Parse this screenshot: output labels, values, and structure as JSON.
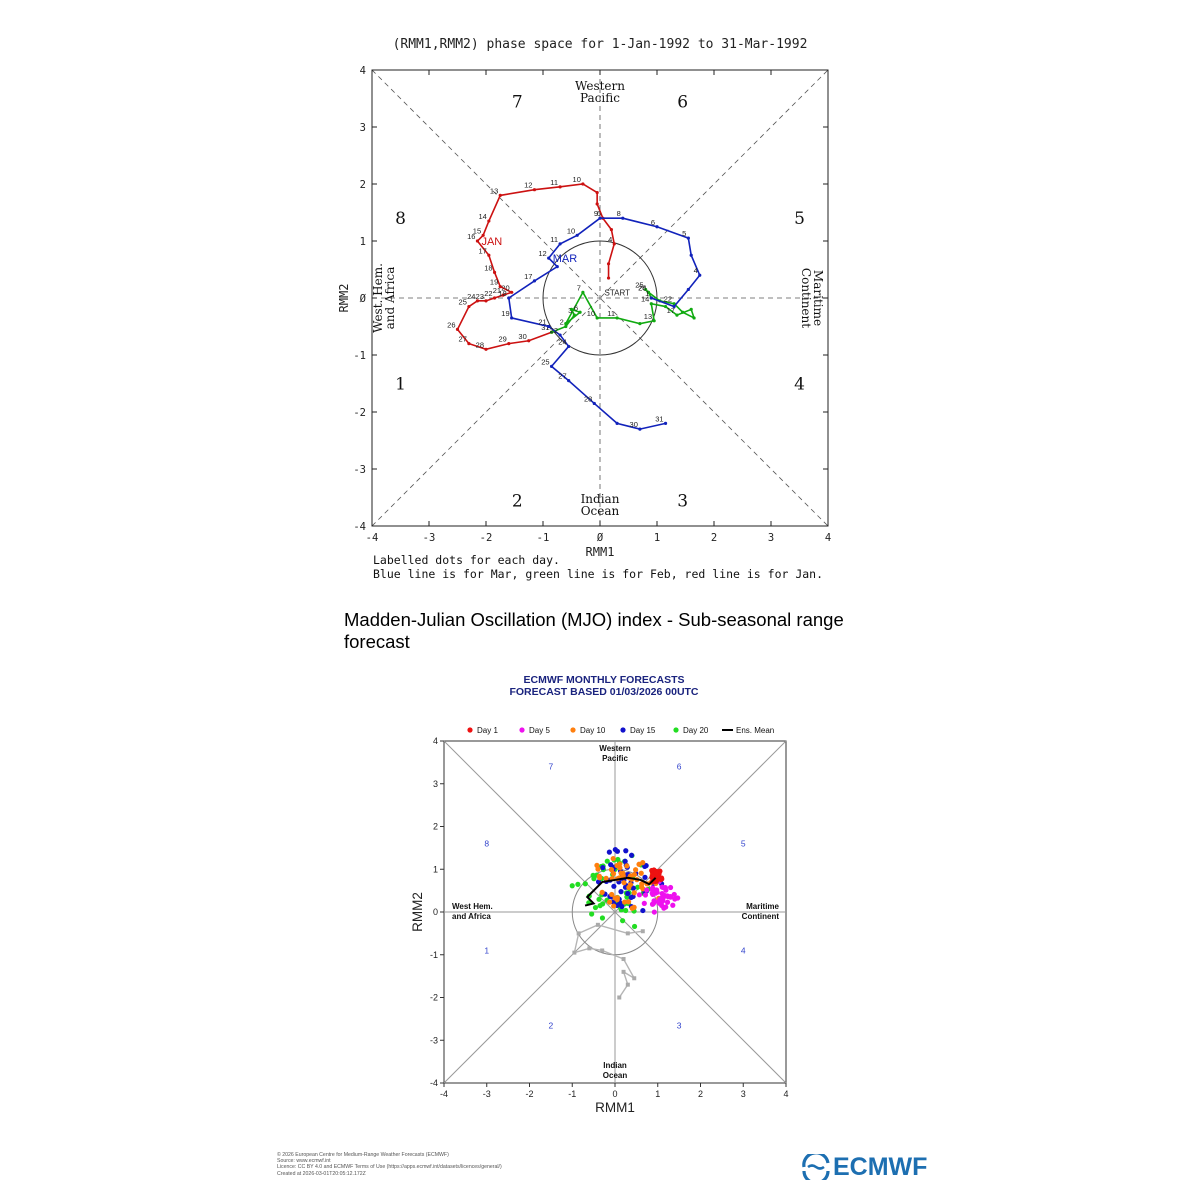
{
  "page": {
    "heading": "Madden-Julian Oscillation (MJO) index - Sub-seasonal range forecast",
    "credits": [
      "© 2026 European Centre for Medium-Range Weather Forecasts (ECMWF)",
      "Source: www.ecmwf.int",
      "Licence: CC BY 4.0 and ECMWF Terms of Use (https://apps.ecmwf.int/datasets/licences/general/)",
      "Created at 2026-03-01T20:05:12.172Z"
    ],
    "logo_text": "ECMWF",
    "logo_icon": "ecmwf-wave-logo"
  },
  "chart_data": [
    {
      "type": "scatter",
      "title": "(RMM1,RMM2) phase space for  1-Jan-1992 to 31-Mar-1992",
      "xlabel": "RMM1",
      "ylabel": "RMM2",
      "xlim": [
        -4,
        4
      ],
      "ylim": [
        -4,
        4
      ],
      "xticks": [
        "-4",
        "-3",
        "-2",
        "-1",
        "0",
        "1",
        "2",
        "3",
        "4"
      ],
      "yticks": [
        "4",
        "3",
        "2",
        "1",
        "0",
        "-1",
        "-2",
        "-3",
        "-4"
      ],
      "phase_numbers": [
        {
          "label": "7",
          "x": -1.45,
          "y": 3.45
        },
        {
          "label": "6",
          "x": 1.45,
          "y": 3.45
        },
        {
          "label": "8",
          "x": -3.5,
          "y": 1.4
        },
        {
          "label": "5",
          "x": 3.5,
          "y": 1.4
        },
        {
          "label": "1",
          "x": -3.5,
          "y": -1.5
        },
        {
          "label": "4",
          "x": 3.5,
          "y": -1.5
        },
        {
          "label": "2",
          "x": -1.45,
          "y": -3.55
        },
        {
          "label": "3",
          "x": 1.45,
          "y": -3.55
        }
      ],
      "regions": [
        {
          "label": "Western\nPacific",
          "position": "top"
        },
        {
          "label": "Indian\nOcean",
          "position": "bottom"
        },
        {
          "label": "West. Hem.\nand Africa",
          "position": "left"
        },
        {
          "label": "Maritime\nContinent",
          "position": "right"
        }
      ],
      "start_label": "START",
      "notes": [
        "Labelled dots for each day.",
        "Blue line is for Mar, green line is for Feb, red line is for Jan."
      ],
      "series": [
        {
          "name": "Jan",
          "color": "#cc1111",
          "month_label": "JAN",
          "points": [
            {
              "x": 0.15,
              "y": 0.35,
              "day": ""
            },
            {
              "x": 0.15,
              "y": 0.6,
              "day": ""
            },
            {
              "x": 0.25,
              "y": 0.95,
              "day": "4"
            },
            {
              "x": 0.2,
              "y": 1.2,
              "day": ""
            },
            {
              "x": 0.05,
              "y": 1.4,
              "day": "6"
            },
            {
              "x": -0.05,
              "y": 1.65,
              "day": ""
            },
            {
              "x": -0.05,
              "y": 1.85,
              "day": ""
            },
            {
              "x": -0.3,
              "y": 2.0,
              "day": "10"
            },
            {
              "x": -0.7,
              "y": 1.95,
              "day": "11"
            },
            {
              "x": -1.15,
              "y": 1.9,
              "day": "12"
            },
            {
              "x": -1.75,
              "y": 1.8,
              "day": "13"
            },
            {
              "x": -1.95,
              "y": 1.35,
              "day": "14"
            },
            {
              "x": -2.05,
              "y": 1.1,
              "day": "15"
            },
            {
              "x": -2.15,
              "y": 1.0,
              "day": "16"
            },
            {
              "x": -1.95,
              "y": 0.75,
              "day": "17"
            },
            {
              "x": -1.85,
              "y": 0.45,
              "day": "18"
            },
            {
              "x": -1.75,
              "y": 0.2,
              "day": "19"
            },
            {
              "x": -1.55,
              "y": 0.1,
              "day": "20"
            },
            {
              "x": -1.7,
              "y": 0.05,
              "day": "21"
            },
            {
              "x": -1.85,
              "y": 0.0,
              "day": "22"
            },
            {
              "x": -2.0,
              "y": -0.05,
              "day": "23"
            },
            {
              "x": -2.15,
              "y": -0.05,
              "day": "24"
            },
            {
              "x": -2.3,
              "y": -0.15,
              "day": "25"
            },
            {
              "x": -2.5,
              "y": -0.55,
              "day": "26"
            },
            {
              "x": -2.3,
              "y": -0.8,
              "day": "27"
            },
            {
              "x": -2.0,
              "y": -0.9,
              "day": "28"
            },
            {
              "x": -1.6,
              "y": -0.8,
              "day": "29"
            },
            {
              "x": -1.25,
              "y": -0.75,
              "day": "30"
            },
            {
              "x": -0.85,
              "y": -0.6,
              "day": "31"
            }
          ]
        },
        {
          "name": "Feb",
          "color": "#11aa11",
          "month_label": "FEB",
          "points": [
            {
              "x": -0.85,
              "y": -0.6,
              "day": "1"
            },
            {
              "x": -0.6,
              "y": -0.5,
              "day": "2"
            },
            {
              "x": -0.45,
              "y": -0.3,
              "day": "3"
            },
            {
              "x": -0.5,
              "y": -0.2,
              "day": ""
            },
            {
              "x": -0.35,
              "y": -0.25,
              "day": "6"
            },
            {
              "x": -0.6,
              "y": -0.45,
              "day": ""
            },
            {
              "x": -0.3,
              "y": 0.1,
              "day": "7"
            },
            {
              "x": -0.05,
              "y": -0.35,
              "day": "10"
            },
            {
              "x": 0.3,
              "y": -0.35,
              "day": "11"
            },
            {
              "x": 0.7,
              "y": -0.45,
              "day": ""
            },
            {
              "x": 0.95,
              "y": -0.4,
              "day": "13"
            },
            {
              "x": 0.9,
              "y": -0.1,
              "day": "14"
            },
            {
              "x": 1.15,
              "y": -0.15,
              "day": ""
            },
            {
              "x": 1.35,
              "y": -0.3,
              "day": "17"
            },
            {
              "x": 1.6,
              "y": -0.2,
              "day": ""
            },
            {
              "x": 1.65,
              "y": -0.35,
              "day": ""
            },
            {
              "x": 1.45,
              "y": -0.25,
              "day": ""
            },
            {
              "x": 1.3,
              "y": -0.1,
              "day": "22"
            },
            {
              "x": 1.05,
              "y": -0.05,
              "day": ""
            },
            {
              "x": 0.85,
              "y": 0.1,
              "day": "24"
            },
            {
              "x": 0.8,
              "y": 0.15,
              "day": "25"
            },
            {
              "x": 0.85,
              "y": 0.1,
              "day": "26"
            },
            {
              "x": 0.9,
              "y": 0.0,
              "day": ""
            }
          ]
        },
        {
          "name": "Mar",
          "color": "#1122bb",
          "month_label": "MAR",
          "points": [
            {
              "x": 0.9,
              "y": 0.0,
              "day": "1"
            },
            {
              "x": 1.3,
              "y": -0.15,
              "day": ""
            },
            {
              "x": 1.55,
              "y": 0.15,
              "day": ""
            },
            {
              "x": 1.75,
              "y": 0.4,
              "day": "4"
            },
            {
              "x": 1.6,
              "y": 0.75,
              "day": ""
            },
            {
              "x": 1.55,
              "y": 1.05,
              "day": "5"
            },
            {
              "x": 1.0,
              "y": 1.25,
              "day": "6"
            },
            {
              "x": 0.4,
              "y": 1.4,
              "day": "8"
            },
            {
              "x": 0.0,
              "y": 1.4,
              "day": "9"
            },
            {
              "x": -0.4,
              "y": 1.1,
              "day": "10"
            },
            {
              "x": -0.7,
              "y": 0.95,
              "day": "11"
            },
            {
              "x": -0.9,
              "y": 0.7,
              "day": "12"
            },
            {
              "x": -0.75,
              "y": 0.55,
              "day": ""
            },
            {
              "x": -1.15,
              "y": 0.3,
              "day": "17"
            },
            {
              "x": -1.6,
              "y": 0.0,
              "day": "18"
            },
            {
              "x": -1.55,
              "y": -0.35,
              "day": "19"
            },
            {
              "x": -0.9,
              "y": -0.5,
              "day": "21"
            },
            {
              "x": -0.7,
              "y": -0.65,
              "day": "22"
            },
            {
              "x": -0.55,
              "y": -0.85,
              "day": "24"
            },
            {
              "x": -0.85,
              "y": -1.2,
              "day": "25"
            },
            {
              "x": -0.55,
              "y": -1.45,
              "day": "27"
            },
            {
              "x": -0.1,
              "y": -1.85,
              "day": "28"
            },
            {
              "x": 0.3,
              "y": -2.2,
              "day": ""
            },
            {
              "x": 0.7,
              "y": -2.3,
              "day": "30"
            },
            {
              "x": 1.15,
              "y": -2.2,
              "day": "31"
            }
          ]
        }
      ]
    },
    {
      "type": "scatter",
      "title": "ECMWF MONTHLY FORECASTS",
      "subtitle": "FORECAST  BASED 01/03/2026 00UTC",
      "xlabel": "RMM1",
      "ylabel": "RMM2",
      "xlim": [
        -4,
        4
      ],
      "ylim": [
        -4,
        4
      ],
      "xticks": [
        "-4",
        "-3",
        "-2",
        "-1",
        "0",
        "1",
        "2",
        "3",
        "4"
      ],
      "yticks": [
        "4",
        "3",
        "2",
        "1",
        "0",
        "-1",
        "-2",
        "-3",
        "-4"
      ],
      "phase_numbers": [
        {
          "label": "7",
          "x": -1.5,
          "y": 3.4
        },
        {
          "label": "6",
          "x": 1.5,
          "y": 3.4
        },
        {
          "label": "8",
          "x": -3.0,
          "y": 1.6
        },
        {
          "label": "5",
          "x": 3.0,
          "y": 1.6
        },
        {
          "label": "1",
          "x": -3.0,
          "y": -0.9
        },
        {
          "label": "4",
          "x": 3.0,
          "y": -0.9
        },
        {
          "label": "2",
          "x": -1.5,
          "y": -2.65
        },
        {
          "label": "3",
          "x": 1.5,
          "y": -2.65
        }
      ],
      "regions": [
        {
          "label": "Western\nPacific",
          "position": "top"
        },
        {
          "label": "Indian\nOcean",
          "position": "bottom"
        },
        {
          "label": "West Hem.\nand Africa",
          "position": "left"
        },
        {
          "label": "Maritime\nContinent",
          "position": "right"
        }
      ],
      "legend": [
        {
          "label": "Day 1",
          "color": "#ee1111",
          "kind": "dot"
        },
        {
          "label": "Day 5",
          "color": "#ee11ee",
          "kind": "dot"
        },
        {
          "label": "Day 10",
          "color": "#ff7f0e",
          "kind": "dot"
        },
        {
          "label": "Day 15",
          "color": "#1111cc",
          "kind": "dot"
        },
        {
          "label": "Day 20",
          "color": "#22dd22",
          "kind": "dot"
        },
        {
          "label": "Ens. Mean",
          "color": "#000000",
          "kind": "line"
        }
      ],
      "observed_track": [
        {
          "x": 0.1,
          "y": -2.0
        },
        {
          "x": 0.3,
          "y": -1.7
        },
        {
          "x": 0.2,
          "y": -1.4
        },
        {
          "x": 0.45,
          "y": -1.55
        },
        {
          "x": 0.2,
          "y": -1.1
        },
        {
          "x": -0.3,
          "y": -0.9
        },
        {
          "x": -0.6,
          "y": -0.85
        },
        {
          "x": -0.95,
          "y": -0.95
        },
        {
          "x": -0.85,
          "y": -0.5
        },
        {
          "x": -0.4,
          "y": -0.3
        },
        {
          "x": 0.3,
          "y": -0.5
        },
        {
          "x": 0.65,
          "y": -0.45
        }
      ],
      "ensemble_mean": [
        {
          "x": 0.95,
          "y": 0.8
        },
        {
          "x": 0.8,
          "y": 0.65
        },
        {
          "x": 0.6,
          "y": 0.75
        },
        {
          "x": 0.3,
          "y": 0.8
        },
        {
          "x": 0.0,
          "y": 0.75
        },
        {
          "x": -0.3,
          "y": 0.7
        },
        {
          "x": -0.5,
          "y": 0.5
        },
        {
          "x": -0.65,
          "y": 0.35
        },
        {
          "x": -0.5,
          "y": 0.2
        },
        {
          "x": -0.7,
          "y": 0.15
        }
      ],
      "ensemble_members": {
        "day1": {
          "color": "#ee1111",
          "center": [
            0.95,
            0.85
          ],
          "spread": 0.12,
          "count": 40
        },
        "day5": {
          "color": "#ee11ee",
          "center": [
            1.05,
            0.35
          ],
          "spread": 0.3,
          "count": 50
        },
        "day10": {
          "color": "#ff7f0e",
          "center": [
            0.2,
            0.75
          ],
          "spread": 0.6,
          "count": 50
        },
        "day15": {
          "color": "#1111cc",
          "center": [
            0.25,
            0.7
          ],
          "spread": 0.65,
          "count": 50
        },
        "day20": {
          "color": "#22dd22",
          "center": [
            -0.05,
            0.55
          ],
          "spread": 0.75,
          "count": 50
        }
      }
    }
  ]
}
